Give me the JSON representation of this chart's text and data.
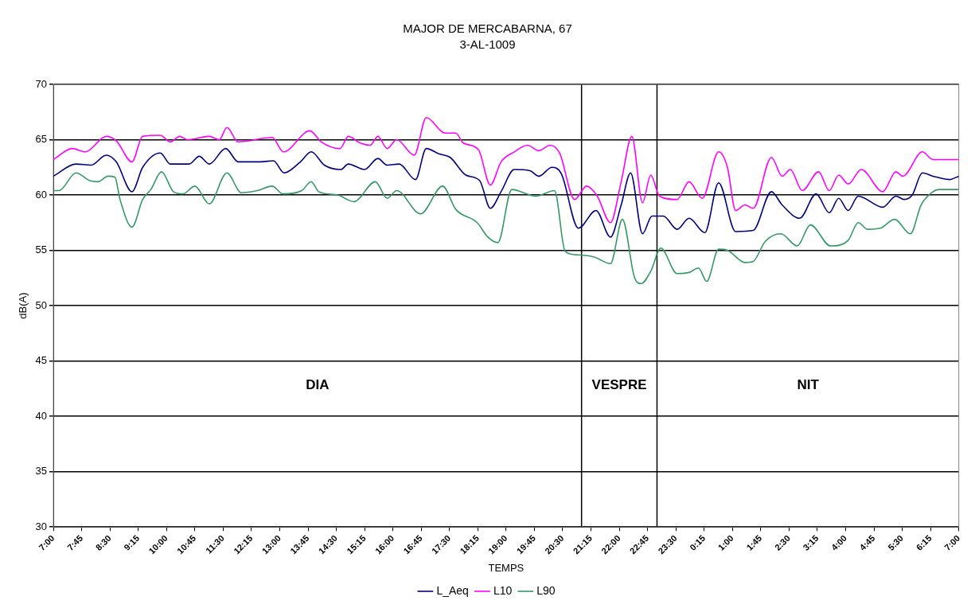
{
  "chart_data": {
    "type": "line",
    "title": "MAJOR DE MERCABARNA, 67",
    "subtitle": "3-AL-1009",
    "xlabel": "TEMPS",
    "ylabel": "dB(A)",
    "xlim": [
      "2000-01-01T07:00",
      "2000-01-02T07:00"
    ],
    "ylim": [
      30,
      70
    ],
    "yticks": [
      30,
      35,
      40,
      45,
      50,
      55,
      60,
      65,
      70
    ],
    "xticks": [
      {
        "value": "2000-01-01T07:00",
        "label": "7:00"
      },
      {
        "value": "2000-01-01T07:45",
        "label": "7:45"
      },
      {
        "value": "2000-01-01T08:30",
        "label": "8:30"
      },
      {
        "value": "2000-01-01T09:15",
        "label": "9:15"
      },
      {
        "value": "2000-01-01T10:00",
        "label": "10:00"
      },
      {
        "value": "2000-01-01T10:45",
        "label": "10:45"
      },
      {
        "value": "2000-01-01T11:30",
        "label": "11:30"
      },
      {
        "value": "2000-01-01T12:15",
        "label": "12:15"
      },
      {
        "value": "2000-01-01T13:00",
        "label": "13:00"
      },
      {
        "value": "2000-01-01T13:45",
        "label": "13:45"
      },
      {
        "value": "2000-01-01T14:30",
        "label": "14:30"
      },
      {
        "value": "2000-01-01T15:15",
        "label": "15:15"
      },
      {
        "value": "2000-01-01T16:00",
        "label": "16:00"
      },
      {
        "value": "2000-01-01T16:45",
        "label": "16:45"
      },
      {
        "value": "2000-01-01T17:30",
        "label": "17:30"
      },
      {
        "value": "2000-01-01T18:15",
        "label": "18:15"
      },
      {
        "value": "2000-01-01T19:00",
        "label": "19:00"
      },
      {
        "value": "2000-01-01T19:45",
        "label": "19:45"
      },
      {
        "value": "2000-01-01T20:30",
        "label": "20:30"
      },
      {
        "value": "2000-01-01T21:15",
        "label": "21:15"
      },
      {
        "value": "2000-01-01T22:00",
        "label": "22:00"
      },
      {
        "value": "2000-01-01T22:45",
        "label": "22:45"
      },
      {
        "value": "2000-01-01T23:30",
        "label": "23:30"
      },
      {
        "value": "2000-01-02T00:15",
        "label": "0:15"
      },
      {
        "value": "2000-01-02T01:00",
        "label": "1:00"
      },
      {
        "value": "2000-01-02T01:45",
        "label": "1:45"
      },
      {
        "value": "2000-01-02T02:30",
        "label": "2:30"
      },
      {
        "value": "2000-01-02T03:15",
        "label": "3:15"
      },
      {
        "value": "2000-01-02T04:00",
        "label": "4:00"
      },
      {
        "value": "2000-01-02T04:45",
        "label": "4:45"
      },
      {
        "value": "2000-01-02T05:30",
        "label": "5:30"
      },
      {
        "value": "2000-01-02T06:15",
        "label": "6:15"
      },
      {
        "value": "2000-01-02T07:00",
        "label": "7:00"
      }
    ],
    "grid": "y",
    "legend": "bottom",
    "marker": "none",
    "line_style": "solid",
    "series": [
      {
        "name": "L_Aeq",
        "color": "#000080",
        "x": [
          "2000-01-01T07:00",
          "2000-01-01T07:36",
          "2000-01-01T08:00",
          "2000-01-01T08:24",
          "2000-01-01T08:40",
          "2000-01-01T09:05",
          "2000-01-01T09:22",
          "2000-01-01T09:50",
          "2000-01-01T10:06",
          "2000-01-01T10:36",
          "2000-01-01T10:52",
          "2000-01-01T11:08",
          "2000-01-01T11:34",
          "2000-01-01T11:54",
          "2000-01-01T12:30",
          "2000-01-01T12:50",
          "2000-01-01T13:07",
          "2000-01-01T13:33",
          "2000-01-01T13:50",
          "2000-01-01T14:11",
          "2000-01-01T14:37",
          "2000-01-01T14:49",
          "2000-01-01T15:15",
          "2000-01-01T15:36",
          "2000-01-01T15:51",
          "2000-01-01T16:10",
          "2000-01-01T16:36",
          "2000-01-01T16:53",
          "2000-01-01T17:14",
          "2000-01-01T17:31",
          "2000-01-01T17:56",
          "2000-01-01T18:18",
          "2000-01-01T18:35",
          "2000-01-01T18:52",
          "2000-01-01T19:13",
          "2000-01-01T19:38",
          "2000-01-01T19:52",
          "2000-01-01T20:13",
          "2000-01-01T20:28",
          "2000-01-01T20:55",
          "2000-01-01T21:23",
          "2000-01-01T21:46",
          "2000-01-01T22:03",
          "2000-01-01T22:18",
          "2000-01-01T22:37",
          "2000-01-01T22:52",
          "2000-01-01T23:10",
          "2000-01-01T23:32",
          "2000-01-01T23:51",
          "2000-01-02T00:16",
          "2000-01-02T00:38",
          "2000-01-02T01:05",
          "2000-01-02T01:33",
          "2000-01-02T02:02",
          "2000-01-02T02:19",
          "2000-01-02T02:47",
          "2000-01-02T03:13",
          "2000-01-02T03:34",
          "2000-01-02T03:49",
          "2000-01-02T04:04",
          "2000-01-02T04:20",
          "2000-01-02T04:59",
          "2000-01-02T05:20",
          "2000-01-02T05:33",
          "2000-01-02T05:46",
          "2000-01-02T06:02",
          "2000-01-02T06:19",
          "2000-01-02T06:45",
          "2000-01-02T07:00"
        ],
        "values": [
          61.7,
          62.8,
          62.7,
          63.6,
          63.0,
          60.3,
          62.5,
          63.8,
          62.8,
          62.8,
          63.5,
          62.8,
          64.2,
          63.0,
          63.0,
          63.1,
          62.0,
          63.0,
          63.9,
          62.7,
          62.3,
          62.8,
          62.3,
          63.3,
          62.7,
          62.8,
          61.4,
          64.2,
          63.7,
          63.4,
          61.8,
          61.3,
          58.8,
          60.3,
          62.3,
          62.2,
          61.7,
          62.5,
          61.9,
          57.0,
          58.6,
          56.2,
          59.1,
          62.0,
          56.5,
          58.1,
          58.1,
          56.9,
          57.9,
          56.6,
          61.1,
          56.7,
          56.8,
          60.3,
          59.1,
          57.9,
          60.1,
          58.4,
          59.7,
          58.6,
          59.9,
          58.9,
          59.9,
          59.6,
          60.0,
          62.0,
          61.7,
          61.4,
          61.7
        ]
      },
      {
        "name": "L10",
        "color": "#ff00ff",
        "x": [
          "2000-01-01T07:00",
          "2000-01-01T07:30",
          "2000-01-01T07:51",
          "2000-01-01T08:24",
          "2000-01-01T08:40",
          "2000-01-01T09:05",
          "2000-01-01T09:22",
          "2000-01-01T09:50",
          "2000-01-01T10:06",
          "2000-01-01T10:21",
          "2000-01-01T10:33",
          "2000-01-01T11:08",
          "2000-01-01T11:24",
          "2000-01-01T11:36",
          "2000-01-01T11:54",
          "2000-01-01T12:48",
          "2000-01-01T13:06",
          "2000-01-01T13:48",
          "2000-01-01T14:06",
          "2000-01-01T14:36",
          "2000-01-01T14:49",
          "2000-01-01T15:08",
          "2000-01-01T15:24",
          "2000-01-01T15:36",
          "2000-01-01T15:51",
          "2000-01-01T16:06",
          "2000-01-01T16:34",
          "2000-01-01T16:53",
          "2000-01-01T17:23",
          "2000-01-01T17:40",
          "2000-01-01T17:52",
          "2000-01-01T18:16",
          "2000-01-01T18:35",
          "2000-01-01T18:52",
          "2000-01-01T19:13",
          "2000-01-01T19:34",
          "2000-01-01T19:52",
          "2000-01-01T20:10",
          "2000-01-01T20:25",
          "2000-01-01T20:49",
          "2000-01-01T21:08",
          "2000-01-01T21:25",
          "2000-01-01T21:46",
          "2000-01-01T22:03",
          "2000-01-01T22:20",
          "2000-01-01T22:37",
          "2000-01-01T22:50",
          "2000-01-01T23:04",
          "2000-01-01T23:32",
          "2000-01-01T23:51",
          "2000-01-02T00:12",
          "2000-01-02T00:38",
          "2000-01-02T00:52",
          "2000-01-02T01:05",
          "2000-01-02T01:20",
          "2000-01-02T01:33",
          "2000-01-02T02:02",
          "2000-01-02T02:19",
          "2000-01-02T02:32",
          "2000-01-02T02:51",
          "2000-01-02T03:17",
          "2000-01-02T03:34",
          "2000-01-02T03:49",
          "2000-01-02T04:04",
          "2000-01-02T04:25",
          "2000-01-02T04:59",
          "2000-01-02T05:20",
          "2000-01-02T05:31",
          "2000-01-02T06:02",
          "2000-01-02T06:19",
          "2000-01-02T07:00"
        ],
        "values": [
          63.2,
          64.2,
          63.9,
          65.3,
          64.9,
          63.0,
          65.3,
          65.4,
          64.8,
          65.3,
          65.0,
          65.3,
          65.0,
          66.1,
          64.8,
          65.2,
          63.9,
          65.8,
          64.8,
          64.2,
          65.3,
          64.7,
          64.5,
          65.3,
          64.2,
          65.0,
          63.6,
          67.0,
          65.6,
          65.6,
          64.7,
          64.1,
          60.9,
          63.0,
          63.9,
          64.5,
          64.0,
          64.5,
          63.8,
          59.6,
          60.8,
          59.9,
          57.5,
          61.2,
          65.3,
          59.3,
          61.8,
          59.9,
          59.6,
          61.2,
          59.7,
          63.9,
          62.5,
          58.6,
          59.1,
          58.8,
          63.4,
          61.7,
          62.3,
          60.4,
          62.1,
          60.4,
          61.8,
          61.0,
          62.3,
          60.3,
          62.1,
          61.7,
          63.9,
          63.2,
          63.2
        ]
      },
      {
        "name": "L90",
        "color": "#339966",
        "x": [
          "2000-01-01T07:00",
          "2000-01-01T07:09",
          "2000-01-01T07:36",
          "2000-01-01T07:58",
          "2000-01-01T08:11",
          "2000-01-01T08:27",
          "2000-01-01T08:38",
          "2000-01-01T08:46",
          "2000-01-01T09:05",
          "2000-01-01T09:22",
          "2000-01-01T09:35",
          "2000-01-01T09:52",
          "2000-01-01T10:11",
          "2000-01-01T10:26",
          "2000-01-01T10:45",
          "2000-01-01T11:08",
          "2000-01-01T11:36",
          "2000-01-01T11:59",
          "2000-01-01T12:24",
          "2000-01-01T12:48",
          "2000-01-01T13:05",
          "2000-01-01T13:35",
          "2000-01-01T13:50",
          "2000-01-01T14:02",
          "2000-01-01T14:32",
          "2000-01-01T14:58",
          "2000-01-01T15:32",
          "2000-01-01T15:51",
          "2000-01-01T16:06",
          "2000-01-01T16:44",
          "2000-01-01T17:19",
          "2000-01-01T17:40",
          "2000-01-01T18:14",
          "2000-01-01T18:31",
          "2000-01-01T18:47",
          "2000-01-01T19:09",
          "2000-01-01T19:47",
          "2000-01-01T20:17",
          "2000-01-01T20:34",
          "2000-01-01T20:51",
          "2000-01-01T21:20",
          "2000-01-01T21:46",
          "2000-01-01T22:05",
          "2000-01-01T22:24",
          "2000-01-01T22:35",
          "2000-01-01T22:50",
          "2000-01-01T23:06",
          "2000-01-01T23:32",
          "2000-01-01T23:51",
          "2000-01-02T00:06",
          "2000-01-02T00:19",
          "2000-01-02T00:38",
          "2000-01-02T00:52",
          "2000-01-02T01:20",
          "2000-01-02T01:33",
          "2000-01-02T01:52",
          "2000-01-02T02:17",
          "2000-01-02T02:43",
          "2000-01-02T03:04",
          "2000-01-02T03:36",
          "2000-01-02T04:04",
          "2000-01-02T04:20",
          "2000-01-02T04:35",
          "2000-01-02T04:55",
          "2000-01-02T05:18",
          "2000-01-02T05:43",
          "2000-01-02T06:00",
          "2000-01-02T06:19",
          "2000-01-02T06:28",
          "2000-01-02T07:00"
        ],
        "values": [
          60.4,
          60.4,
          62.0,
          61.3,
          61.2,
          61.7,
          61.6,
          59.6,
          57.1,
          59.6,
          60.5,
          62.1,
          60.3,
          60.1,
          60.8,
          59.2,
          62.0,
          60.2,
          60.4,
          60.8,
          60.1,
          60.4,
          61.2,
          60.3,
          60.0,
          59.4,
          61.2,
          59.7,
          60.4,
          58.3,
          60.8,
          58.7,
          57.5,
          56.2,
          55.7,
          60.5,
          59.9,
          60.4,
          54.9,
          54.6,
          54.4,
          53.8,
          57.8,
          52.6,
          52.0,
          53.1,
          55.2,
          52.9,
          53.0,
          53.4,
          52.2,
          55.1,
          55.0,
          53.9,
          54.0,
          55.8,
          56.5,
          55.4,
          57.3,
          55.4,
          55.9,
          57.5,
          56.9,
          57.0,
          57.8,
          56.5,
          59.1,
          60.3,
          60.5,
          60.5
        ]
      }
    ],
    "ref_lines": [
      {
        "axis": "x",
        "value": "2000-01-01T21:00",
        "color": "#000000"
      },
      {
        "axis": "x",
        "value": "2000-01-01T23:00",
        "color": "#000000"
      }
    ],
    "annotations": [
      "DIA",
      "VESPRE",
      "NIT"
    ]
  }
}
